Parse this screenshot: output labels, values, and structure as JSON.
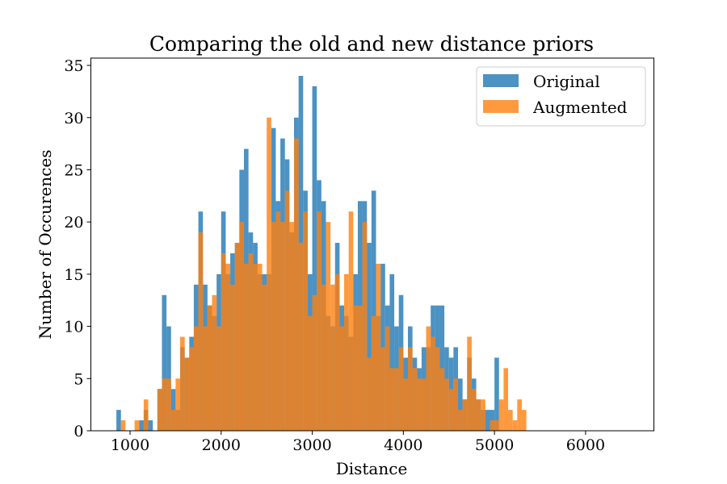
{
  "chart_data": {
    "type": "histogram",
    "title": "Comparing the old and new distance priors",
    "xlabel": "Distance",
    "ylabel": "Number of Occurences",
    "xlim": [
      570,
      6750
    ],
    "ylim": [
      0,
      35.7
    ],
    "xticks": [
      1000,
      2000,
      3000,
      4000,
      5000,
      6000
    ],
    "yticks": [
      0,
      5,
      10,
      15,
      20,
      25,
      30,
      35
    ],
    "legend_position": "upper right",
    "grid": false,
    "bin_width": 50,
    "series": [
      {
        "name": "Original",
        "color": "#1f77b4",
        "bin_start": 850,
        "values": [
          2,
          0,
          0,
          0,
          0,
          1,
          2,
          1,
          0,
          4,
          13,
          10,
          4,
          2,
          8,
          7,
          9,
          14,
          21,
          14,
          12,
          11,
          15,
          21,
          15,
          17,
          18,
          25,
          27,
          19,
          18,
          15,
          15,
          15,
          29,
          22,
          28,
          26,
          19,
          30,
          34,
          23,
          15,
          33,
          24,
          22,
          11,
          10,
          18,
          12,
          11,
          9,
          15,
          22,
          22,
          18,
          23,
          11,
          16,
          12,
          15,
          10,
          13,
          7,
          10,
          7,
          6,
          8,
          8,
          12,
          12,
          12,
          8,
          7,
          8,
          5,
          3,
          7,
          5,
          3,
          2,
          2,
          2,
          7,
          0,
          0,
          0,
          0,
          0,
          0
        ]
      },
      {
        "name": "Augmented",
        "color": "#ff7f0e",
        "bin_start": 850,
        "values": [
          0,
          1,
          0,
          0,
          1,
          0,
          3,
          0,
          0,
          4,
          5,
          5,
          2,
          5,
          9,
          7,
          8,
          10,
          19,
          10,
          12,
          13,
          10,
          17,
          16,
          14,
          18,
          20,
          16,
          17,
          16,
          16,
          14,
          30,
          20,
          21,
          20,
          23,
          20,
          28,
          18,
          21,
          11,
          13,
          21,
          14,
          20,
          14,
          15,
          10,
          15,
          21,
          12,
          12,
          20,
          7,
          11,
          16,
          8,
          10,
          6,
          6,
          8,
          5,
          8,
          6,
          5,
          5,
          10,
          9,
          8,
          6,
          5,
          4,
          5,
          2,
          3,
          9,
          4,
          3,
          3,
          0,
          1,
          1,
          3,
          6,
          2,
          1,
          3,
          2
        ]
      }
    ]
  }
}
